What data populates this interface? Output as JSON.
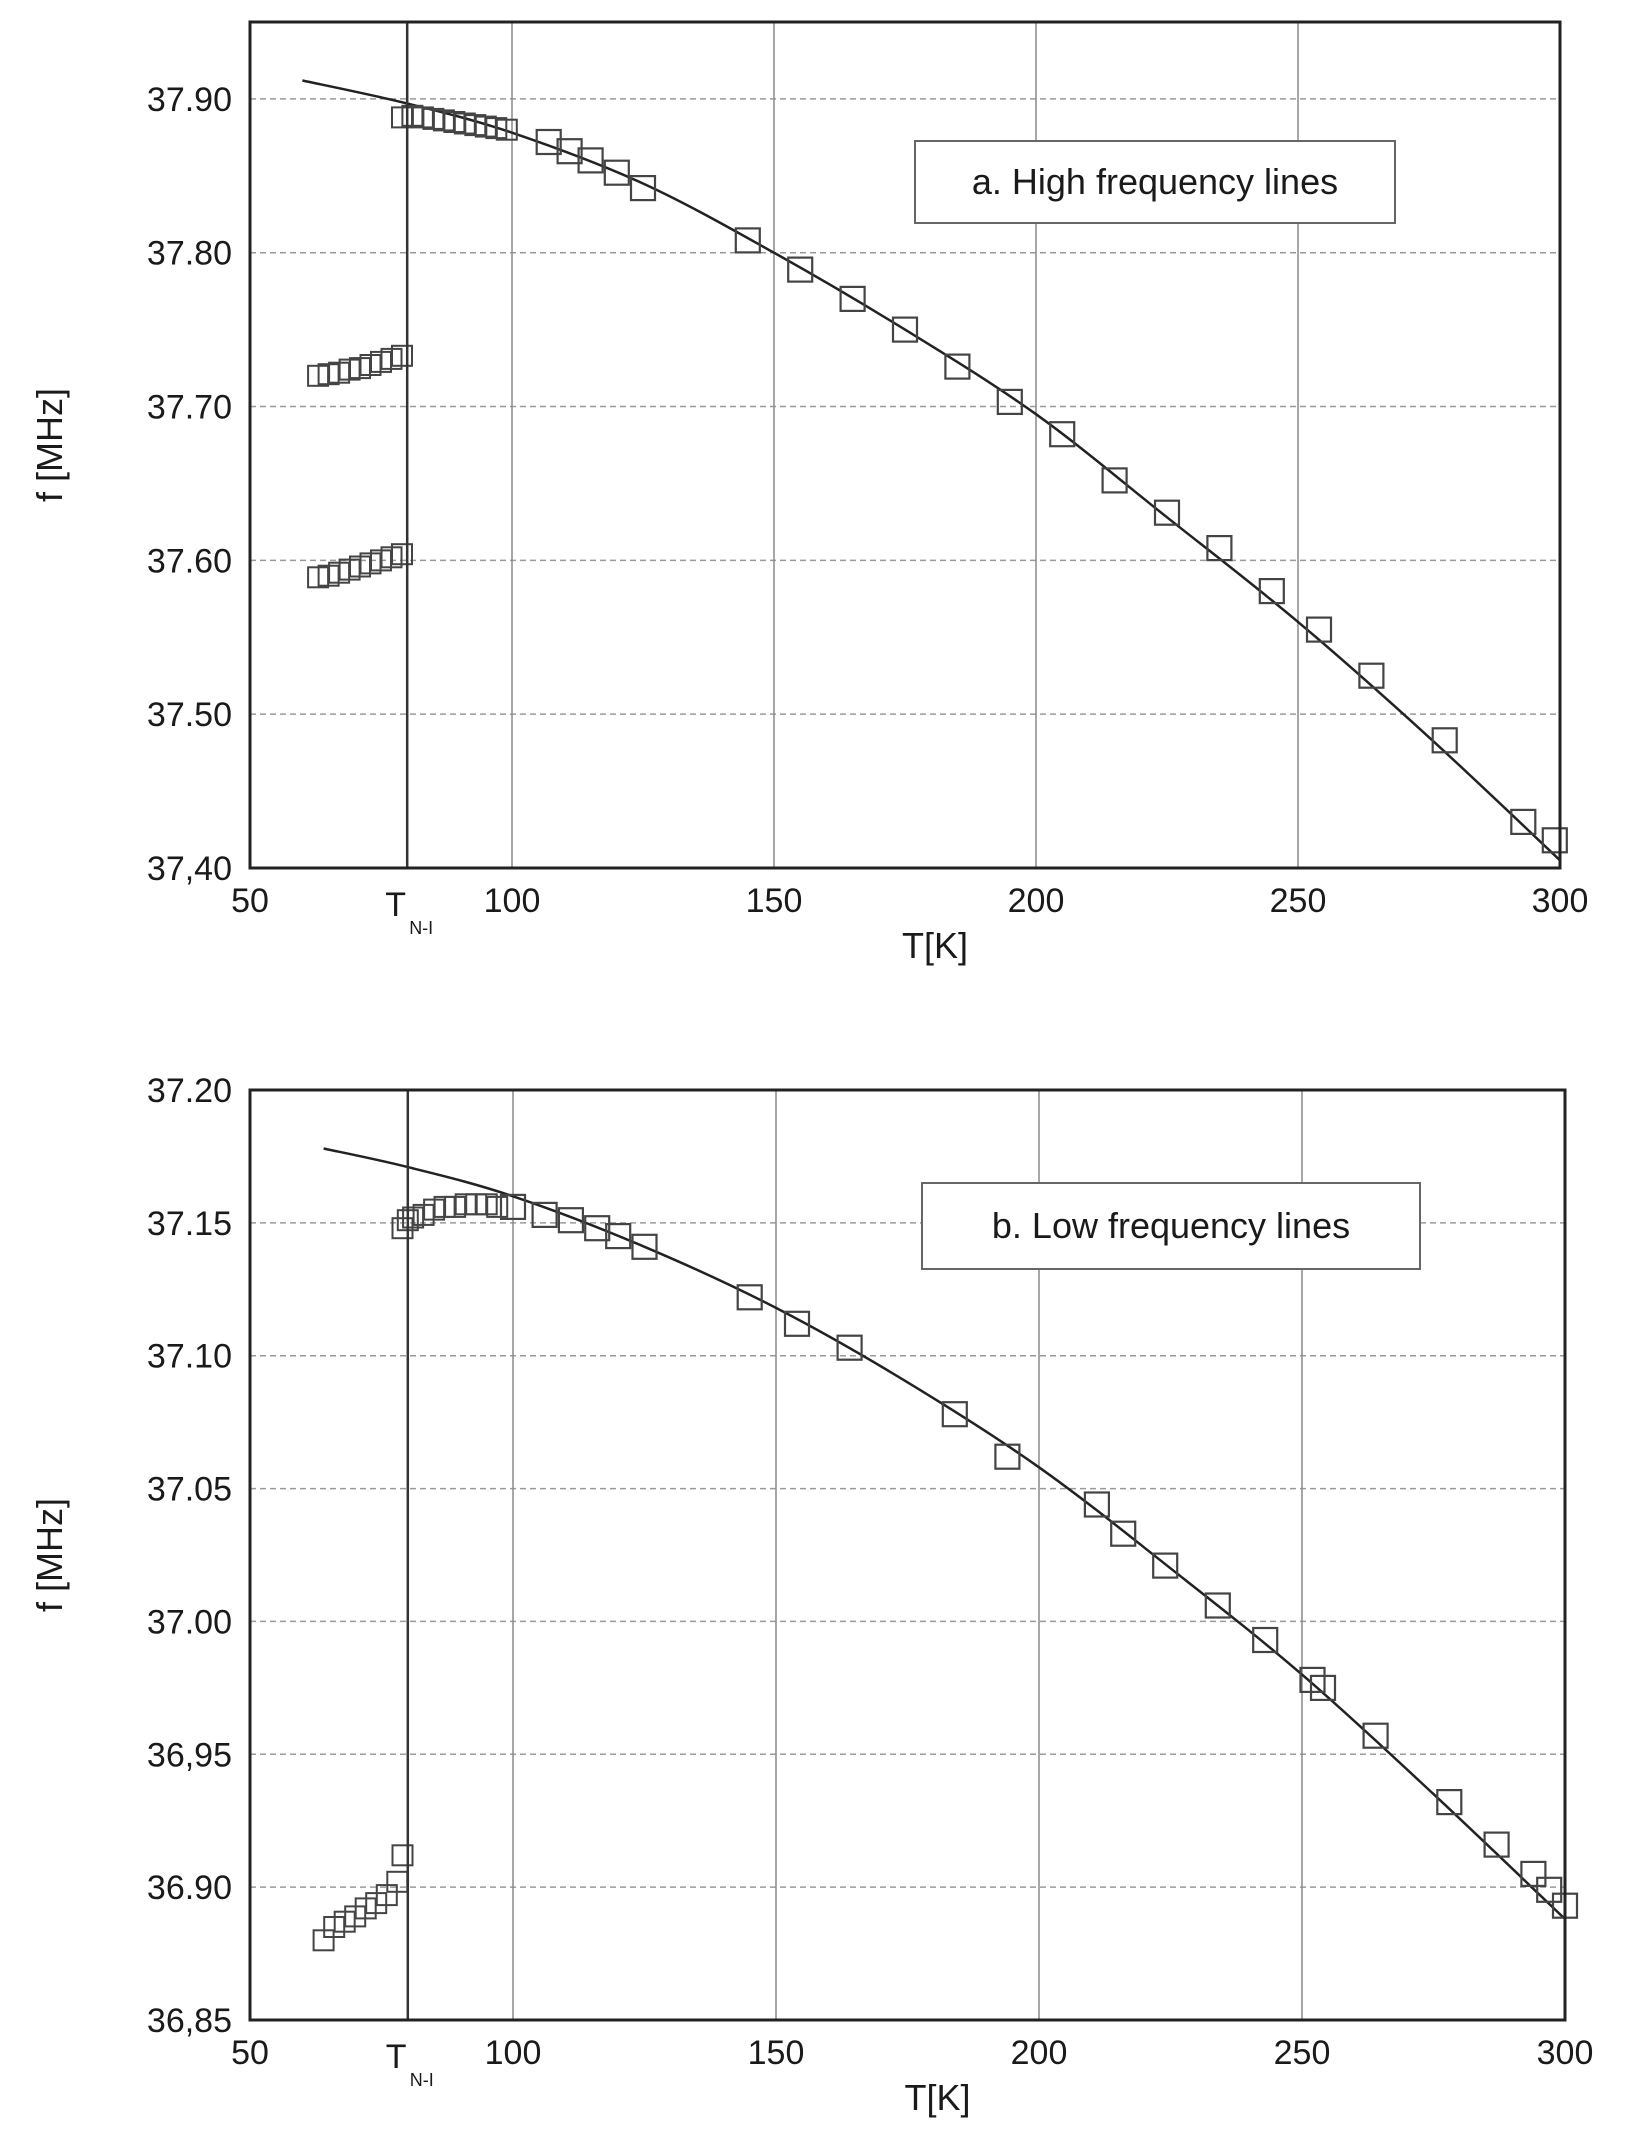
{
  "chart_data": [
    {
      "id": "a",
      "type": "scatter",
      "title": "a. High frequency lines",
      "xlabel": "T[K]",
      "ylabel": "f [MHz]",
      "xlim": [
        50,
        300
      ],
      "ylim": [
        37.4,
        37.95
      ],
      "x_ticks": [
        50,
        100,
        150,
        200,
        250,
        300
      ],
      "x_tick_labels": [
        "50",
        "100",
        "150",
        "200",
        "250",
        "300"
      ],
      "y_ticks": [
        37.4,
        37.5,
        37.6,
        37.7,
        37.8,
        37.9
      ],
      "y_tick_labels": [
        "37,40",
        "37.50",
        "37.60",
        "37.70",
        "37.80",
        "37.90"
      ],
      "grid": true,
      "legend_position": "top-right",
      "transition_temperature": {
        "value": 80,
        "label": "T",
        "subscript": "N-I"
      },
      "fit_curve": {
        "x": [
          60,
          80,
          100,
          125,
          150,
          175,
          200,
          225,
          250,
          275,
          300
        ],
        "y": [
          37.912,
          37.897,
          37.878,
          37.845,
          37.8,
          37.75,
          37.695,
          37.628,
          37.56,
          37.485,
          37.405
        ]
      },
      "series": [
        {
          "name": "main",
          "marker": "square",
          "x": [
            79,
            81,
            83,
            85,
            87,
            89,
            91,
            93,
            95,
            97,
            99,
            107,
            111,
            115,
            120,
            125,
            145,
            155,
            165,
            175,
            185,
            195,
            205,
            215,
            225,
            235,
            245,
            254,
            264,
            278,
            293,
            299
          ],
          "y": [
            37.888,
            37.889,
            37.888,
            37.887,
            37.886,
            37.885,
            37.884,
            37.883,
            37.882,
            37.881,
            37.88,
            37.872,
            37.866,
            37.86,
            37.852,
            37.842,
            37.808,
            37.789,
            37.77,
            37.75,
            37.726,
            37.703,
            37.682,
            37.652,
            37.631,
            37.608,
            37.58,
            37.555,
            37.525,
            37.483,
            37.43,
            37.418
          ]
        },
        {
          "name": "split-upper",
          "marker": "square",
          "x": [
            63,
            65,
            67,
            69,
            71,
            73,
            75,
            77,
            79
          ],
          "y": [
            37.72,
            37.721,
            37.722,
            37.724,
            37.725,
            37.727,
            37.729,
            37.731,
            37.733
          ]
        },
        {
          "name": "split-lower",
          "marker": "square",
          "x": [
            63,
            65,
            67,
            69,
            71,
            73,
            75,
            77,
            79
          ],
          "y": [
            37.589,
            37.59,
            37.592,
            37.594,
            37.596,
            37.598,
            37.6,
            37.602,
            37.604
          ]
        }
      ]
    },
    {
      "id": "b",
      "type": "scatter",
      "title": "b. Low frequency lines",
      "xlabel": "T[K]",
      "ylabel": "f [MHz]",
      "xlim": [
        50,
        300
      ],
      "ylim": [
        36.85,
        37.2
      ],
      "x_ticks": [
        50,
        100,
        150,
        200,
        250,
        300
      ],
      "x_tick_labels": [
        "50",
        "100",
        "150",
        "200",
        "250",
        "300"
      ],
      "y_ticks": [
        36.85,
        36.9,
        36.95,
        37.0,
        37.05,
        37.1,
        37.15,
        37.2
      ],
      "y_tick_labels": [
        "36,85",
        "36.90",
        "36,95",
        "37.00",
        "37.05",
        "37.10",
        "37.15",
        "37.20"
      ],
      "grid": true,
      "legend_position": "top-right",
      "transition_temperature": {
        "value": 80,
        "label": "T",
        "subscript": "N-I"
      },
      "fit_curve": {
        "x": [
          64,
          80,
          100,
          125,
          150,
          175,
          200,
          225,
          250,
          275,
          300
        ],
        "y": [
          37.178,
          37.171,
          37.16,
          37.141,
          37.118,
          37.09,
          37.058,
          37.02,
          36.98,
          36.935,
          36.888
        ]
      },
      "series": [
        {
          "name": "main",
          "marker": "square",
          "x": [
            79,
            80,
            81,
            83,
            85,
            87,
            89,
            91,
            93,
            95,
            97,
            100,
            106,
            111,
            116,
            120,
            125,
            145,
            154,
            164,
            184,
            194,
            211,
            216,
            224,
            234,
            243,
            252,
            254,
            264,
            278,
            287,
            294,
            297,
            300
          ],
          "y": [
            37.148,
            37.151,
            37.152,
            37.153,
            37.155,
            37.156,
            37.156,
            37.157,
            37.157,
            37.157,
            37.156,
            37.156,
            37.153,
            37.151,
            37.148,
            37.145,
            37.141,
            37.122,
            37.112,
            37.103,
            37.078,
            37.062,
            37.044,
            37.033,
            37.021,
            37.006,
            36.993,
            36.978,
            36.975,
            36.957,
            36.932,
            36.916,
            36.905,
            36.899,
            36.893
          ]
        },
        {
          "name": "split",
          "marker": "square",
          "x": [
            64,
            66,
            68,
            70,
            72,
            74,
            76,
            78,
            79
          ],
          "y": [
            36.88,
            36.885,
            36.887,
            36.889,
            36.892,
            36.894,
            36.897,
            36.902,
            36.912
          ]
        }
      ]
    }
  ]
}
